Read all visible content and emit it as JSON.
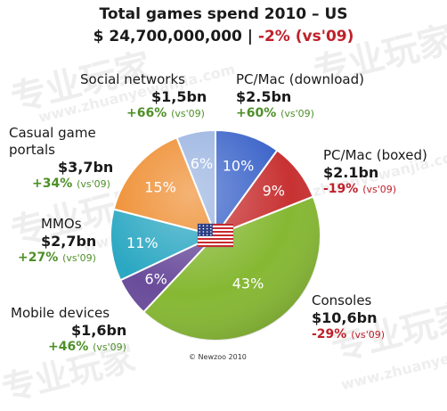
{
  "header": {
    "title": "Total games spend 2010 – US",
    "total": "$ 24,700,000,000 |",
    "total_change": "-2%",
    "total_change_note": "(vs'09)"
  },
  "copyright": "© Newzoo 2010",
  "watermark": [
    "专业玩家",
    "www.zhuanyewanjia.com"
  ],
  "chart_data": {
    "type": "pie",
    "title": "Total games spend 2010 – US",
    "center_icon": "us-flag-icon",
    "slices": [
      {
        "label": "PC/Mac (download)",
        "percent": 10,
        "value": "$2.5bn",
        "change": "+60%",
        "change_note": "(vs'09)",
        "color": "#3a63c9"
      },
      {
        "label": "PC/Mac (boxed)",
        "percent": 9,
        "value": "$2.1bn",
        "change": "-19%",
        "change_note": "(vs'09)",
        "color": "#c83233"
      },
      {
        "label": "Consoles",
        "percent": 43,
        "value": "$10,6bn",
        "change": "-29%",
        "change_note": "(vs'09)",
        "color": "#86b833"
      },
      {
        "label": "Mobile devices",
        "percent": 6,
        "value": "$1,6bn",
        "change": "+46%",
        "change_note": "(vs'09)",
        "color": "#6a4c9b"
      },
      {
        "label": "MMOs",
        "percent": 11,
        "value": "$2,7bn",
        "change": "+27%",
        "change_note": "(vs'09)",
        "color": "#2aa7c2"
      },
      {
        "label": "Casual game portals",
        "percent": 15,
        "value": "$3,7bn",
        "change": "+34%",
        "change_note": "(vs'09)",
        "color": "#ee8a2a"
      },
      {
        "label": "Social networks",
        "percent": 6,
        "value": "$1,5bn",
        "change": "+66%",
        "change_note": "(vs'09)",
        "color": "#98b2e0"
      }
    ]
  }
}
